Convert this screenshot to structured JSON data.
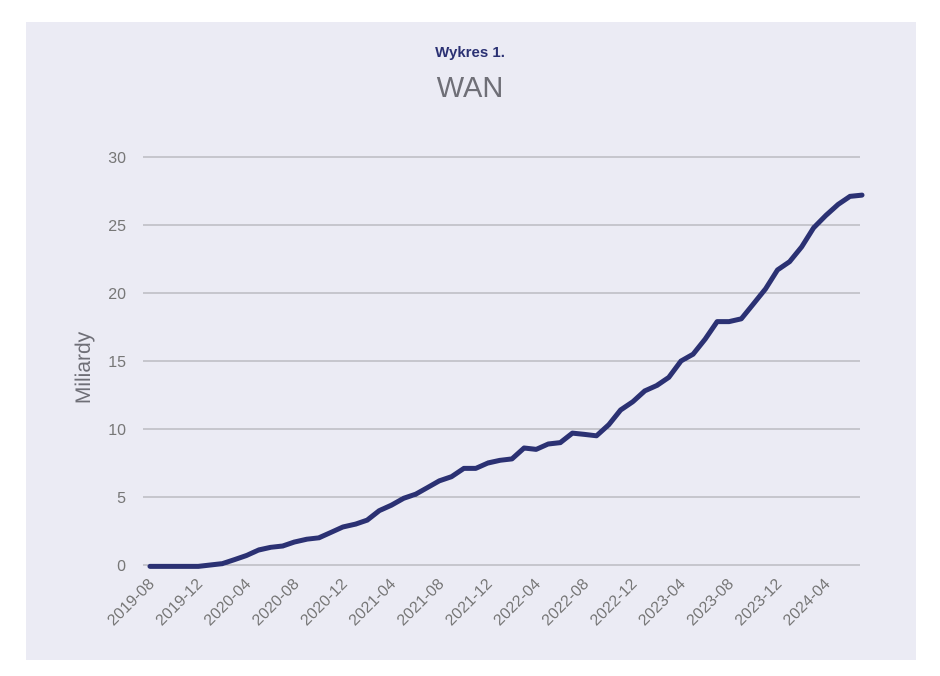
{
  "header": {
    "kicker": "Wykres 1.",
    "title": "WAN"
  },
  "chart_data": {
    "type": "line",
    "title": "WAN",
    "subtitle": "Wykres 1.",
    "xlabel": "",
    "ylabel": "Miliardy",
    "ylim": [
      0,
      30
    ],
    "yticks": [
      0,
      5,
      10,
      15,
      20,
      25,
      30
    ],
    "xticks": [
      "2019-08",
      "2019-12",
      "2020-04",
      "2020-08",
      "2020-12",
      "2021-04",
      "2021-08",
      "2021-12",
      "2022-04",
      "2022-08",
      "2022-12",
      "2023-04",
      "2023-08",
      "2023-12",
      "2024-04"
    ],
    "grid": true,
    "legend": "none",
    "colors": {
      "line": "#2b3173",
      "grid": "#a0a0a6",
      "background": "#ebebf4"
    },
    "series": [
      {
        "x": [
          "2019-08",
          "2019-09",
          "2019-10",
          "2019-11",
          "2019-12",
          "2020-01",
          "2020-02",
          "2020-03",
          "2020-04",
          "2020-05",
          "2020-06",
          "2020-07",
          "2020-08",
          "2020-09",
          "2020-10",
          "2020-11",
          "2020-12",
          "2021-01",
          "2021-02",
          "2021-03",
          "2021-04",
          "2021-05",
          "2021-06",
          "2021-07",
          "2021-08",
          "2021-09",
          "2021-10",
          "2021-11",
          "2021-12",
          "2022-01",
          "2022-02",
          "2022-03",
          "2022-04",
          "2022-05",
          "2022-06",
          "2022-07",
          "2022-08",
          "2022-09",
          "2022-10",
          "2022-11",
          "2022-12",
          "2023-01",
          "2023-02",
          "2023-03",
          "2023-04",
          "2023-05",
          "2023-06",
          "2023-07",
          "2023-08",
          "2023-09",
          "2023-10",
          "2023-11",
          "2023-12",
          "2024-01",
          "2024-02",
          "2024-03",
          "2024-04",
          "2024-05",
          "2024-06",
          "2024-07"
        ],
        "values": [
          -0.1,
          -0.1,
          -0.1,
          -0.1,
          -0.1,
          0.0,
          0.1,
          0.4,
          0.7,
          1.1,
          1.3,
          1.4,
          1.7,
          1.9,
          2.0,
          2.4,
          2.8,
          3.0,
          3.3,
          4.0,
          4.4,
          4.9,
          5.2,
          5.7,
          6.2,
          6.5,
          7.1,
          7.1,
          7.5,
          7.7,
          7.8,
          8.6,
          8.5,
          8.9,
          9.0,
          9.7,
          9.6,
          9.5,
          10.3,
          11.4,
          12.0,
          12.8,
          13.2,
          13.8,
          15.0,
          15.5,
          16.6,
          17.9,
          17.9,
          18.1,
          19.2,
          20.3,
          21.7,
          22.3,
          23.4,
          24.8,
          25.7,
          26.5,
          27.1,
          27.2
        ]
      }
    ]
  }
}
